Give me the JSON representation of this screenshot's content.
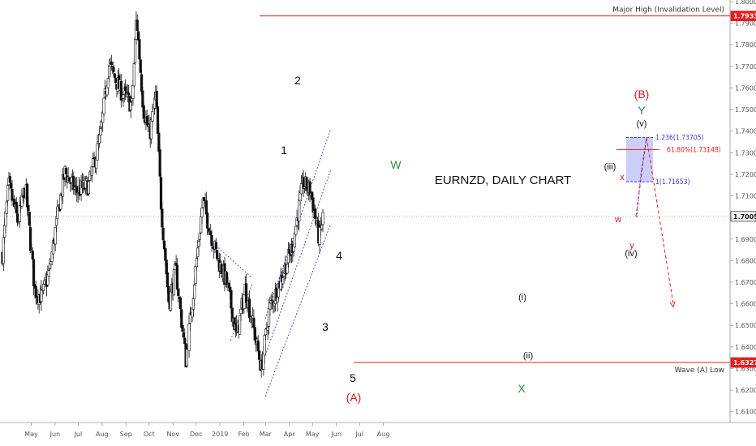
{
  "chart_data": {
    "type": "candlestick",
    "title": "EURNZD, DAILY CHART",
    "ylim": [
      1.605,
      1.8
    ],
    "y_ticks": [
      "1.61000",
      "1.62000",
      "1.63000",
      "1.64000",
      "1.65000",
      "1.66000",
      "1.67000",
      "1.68000",
      "1.69000",
      "1.70000",
      "1.71000",
      "1.72000",
      "1.73000",
      "1.74000",
      "1.75000",
      "1.76000",
      "1.77000",
      "1.78000",
      "1.79000",
      "1.80000"
    ],
    "x_ticks": [
      "May",
      "Jun",
      "Jul",
      "Aug",
      "Sep",
      "Oct",
      "Nov",
      "Dec",
      "2019",
      "Feb",
      "Mar",
      "Apr",
      "May",
      "Jun",
      "Jul",
      "Aug"
    ],
    "price_badges": [
      {
        "value": "1.79337",
        "color": "#e41e1e"
      },
      {
        "value": "1.70050",
        "color": "#ffffff"
      },
      {
        "value": "1.63279",
        "color": "#e41e1e"
      }
    ],
    "horizontal_levels": [
      {
        "label": "Major High (Invalidation Level)",
        "value": 1.79337
      },
      {
        "label": "Wave (A) Low",
        "value": 1.63279
      }
    ],
    "fib_levels": [
      {
        "label": "1.236(1.73705)",
        "value": 1.73705
      },
      {
        "label": "61.80%(1.73148)",
        "value": 1.73148
      },
      {
        "label": "1(1.71653)",
        "value": 1.71653
      }
    ],
    "wave_labels": [
      {
        "text": "1",
        "color": "#111111"
      },
      {
        "text": "2",
        "color": "#111111"
      },
      {
        "text": "3",
        "color": "#111111"
      },
      {
        "text": "4",
        "color": "#111111"
      },
      {
        "text": "5",
        "color": "#111111"
      },
      {
        "text": "(A)",
        "color": "#d11919"
      },
      {
        "text": "W",
        "color": "#2e8b3a"
      },
      {
        "text": "X",
        "color": "#2e8b3a"
      },
      {
        "text": "Y",
        "color": "#2e8b3a"
      },
      {
        "text": "(B)",
        "color": "#d11919"
      },
      {
        "text": "(i)",
        "color": "#111111"
      },
      {
        "text": "(ii)",
        "color": "#111111"
      },
      {
        "text": "(iii)",
        "color": "#111111"
      },
      {
        "text": "(iv)",
        "color": "#111111"
      },
      {
        "text": "(v)",
        "color": "#111111"
      },
      {
        "text": "w",
        "color": "#d11919"
      },
      {
        "text": "x",
        "color": "#d11919"
      },
      {
        "text": "y",
        "color": "#d11919"
      }
    ],
    "price_path": [
      {
        "x": "Apr 20",
        "y": 1.683
      },
      {
        "x": "Apr 28",
        "y": 1.715
      },
      {
        "x": "May 10",
        "y": 1.698
      },
      {
        "x": "May 20",
        "y": 1.714
      },
      {
        "x": "Jun 01",
        "y": 1.666
      },
      {
        "x": "Jun 10",
        "y": 1.663
      },
      {
        "x": "Jun 20",
        "y": 1.675
      },
      {
        "x": "Jun 30",
        "y": 1.7
      },
      {
        "x": "Jul 10",
        "y": 1.721
      },
      {
        "x": "Jul 25",
        "y": 1.712
      },
      {
        "x": "Aug 10",
        "y": 1.715
      },
      {
        "x": "Aug 25",
        "y": 1.737
      },
      {
        "x": "Sep 05",
        "y": 1.771
      },
      {
        "x": "Sep 20",
        "y": 1.759
      },
      {
        "x": "Oct 05",
        "y": 1.752
      },
      {
        "x": "Oct 11",
        "y": 1.793
      },
      {
        "x": "Oct 20",
        "y": 1.75
      },
      {
        "x": "Oct 28",
        "y": 1.738
      },
      {
        "x": "Nov 05",
        "y": 1.757
      },
      {
        "x": "Nov 12",
        "y": 1.705
      },
      {
        "x": "Nov 22",
        "y": 1.66
      },
      {
        "x": "Dec 01",
        "y": 1.676
      },
      {
        "x": "Dec 14",
        "y": 1.634
      },
      {
        "x": "Dec 22",
        "y": 1.66
      },
      {
        "x": "Jan 05",
        "y": 1.708
      },
      {
        "x": "Jan 15",
        "y": 1.693
      },
      {
        "x": "Jan 25",
        "y": 1.68
      },
      {
        "x": "Feb 05",
        "y": 1.67
      },
      {
        "x": "Feb 18",
        "y": 1.645
      },
      {
        "x": "Mar 01",
        "y": 1.667
      },
      {
        "x": "Mar 10",
        "y": 1.652
      },
      {
        "x": "Mar 22",
        "y": 1.63
      },
      {
        "x": "Apr 01",
        "y": 1.657
      },
      {
        "x": "Apr 15",
        "y": 1.67
      },
      {
        "x": "May 01",
        "y": 1.686
      },
      {
        "x": "May 15",
        "y": 1.716
      },
      {
        "x": "May 25",
        "y": 1.712
      },
      {
        "x": "Jun 05",
        "y": 1.69
      },
      {
        "x": "Jun 10",
        "y": 1.7005
      }
    ],
    "projection_path": [
      {
        "x": "Jun 10",
        "y": 1.7005
      },
      {
        "x": "Jun 17",
        "y": 1.737
      },
      {
        "x": "Jul 05",
        "y": 1.66
      }
    ],
    "colors": {
      "bull": "#ffffff",
      "bear": "#111111",
      "wick": "#111111",
      "level": "#e41e1e",
      "channel": "#3b3bd6",
      "fib_box": "#b9bff5",
      "projection": "#e41e1e",
      "green": "#2e8b3a",
      "red": "#d11919"
    },
    "grid": false
  }
}
